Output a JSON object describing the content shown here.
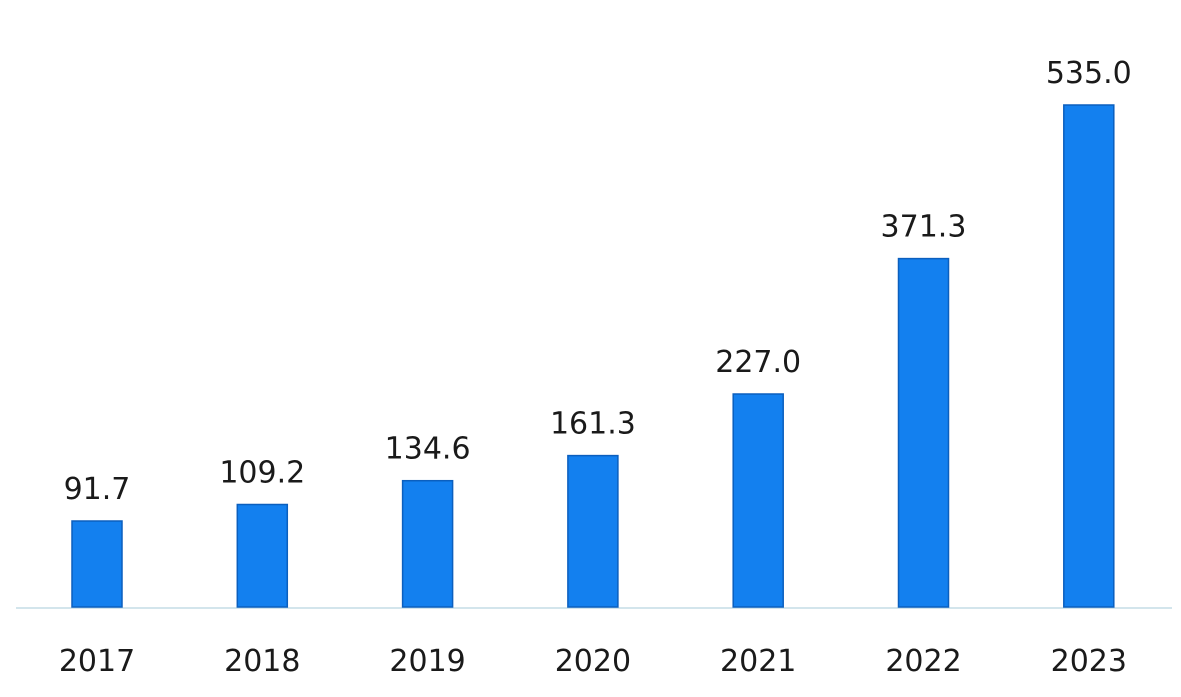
{
  "chart_data": {
    "type": "bar",
    "title": "",
    "xlabel": "",
    "ylabel": "",
    "categories": [
      "2017",
      "2018",
      "2019",
      "2020",
      "2021",
      "2022",
      "2023"
    ],
    "values": [
      91.7,
      109.2,
      134.6,
      161.3,
      227.0,
      371.3,
      535.0
    ],
    "value_labels": [
      "91.7",
      "109.2",
      "134.6",
      "161.3",
      "227.0",
      "371.3",
      "535.0"
    ],
    "ylim": [
      0,
      535
    ],
    "grid": false,
    "legend": "none",
    "colors": {
      "bar": "#1380ef",
      "bar_edge": "#0b5fbe",
      "baseline": "#d3e5ec",
      "text": "#1a1a1a"
    }
  }
}
